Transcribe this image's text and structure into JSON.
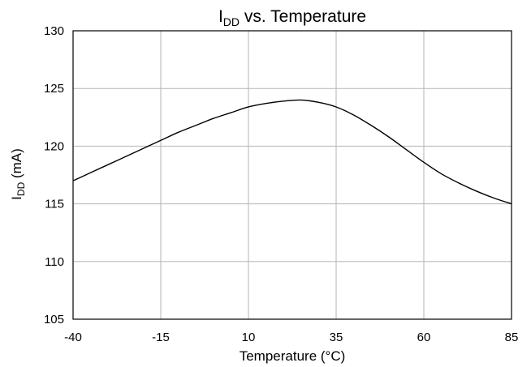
{
  "chart_data": {
    "type": "line",
    "title": {
      "main": "I",
      "sub": "DD",
      "rest": " vs. Temperature"
    },
    "xlabel": "Temperature (°C)",
    "ylabel": {
      "main": "I",
      "sub": "DD",
      "rest": " (mA)"
    },
    "xlim": [
      -40,
      85
    ],
    "ylim": [
      105,
      130
    ],
    "x_ticks": [
      -40,
      -15,
      10,
      35,
      60,
      85
    ],
    "y_ticks": [
      105,
      110,
      115,
      120,
      125,
      130
    ],
    "grid": true,
    "legend": "none",
    "series": [
      {
        "color": "#000000",
        "x": [
          -40,
          -35,
          -30,
          -25,
          -20,
          -15,
          -10,
          -5,
          0,
          5,
          10,
          15,
          20,
          25,
          30,
          35,
          40,
          45,
          50,
          55,
          60,
          65,
          70,
          75,
          80,
          85
        ],
        "y": [
          117.0,
          117.7,
          118.4,
          119.1,
          119.8,
          120.5,
          121.2,
          121.8,
          122.4,
          122.9,
          123.4,
          123.7,
          123.9,
          124.0,
          123.8,
          123.4,
          122.7,
          121.8,
          120.8,
          119.7,
          118.6,
          117.6,
          116.8,
          116.1,
          115.5,
          115.0
        ]
      }
    ]
  }
}
